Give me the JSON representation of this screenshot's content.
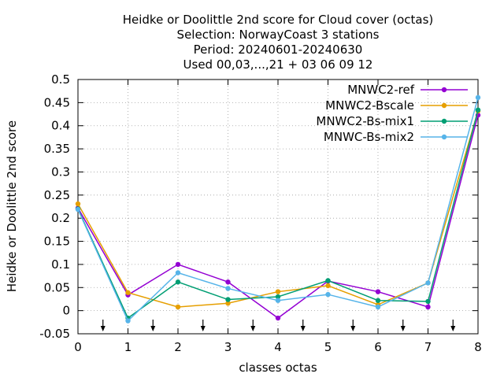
{
  "chart_data": {
    "type": "line",
    "title_lines": [
      "Heidke or Doolittle 2nd score  for Cloud cover (octas)",
      "Selection: NorwayCoast      3 stations",
      "Period: 20240601-20240630",
      "Used 00,03,...,21 + 03 06 09 12"
    ],
    "xlabel": "classes octas",
    "ylabel": "Heidke or Doolittle 2nd score",
    "xlim": [
      0,
      8
    ],
    "ylim": [
      -0.05,
      0.5
    ],
    "xticks": [
      "0",
      "1",
      "2",
      "3",
      "4",
      "5",
      "6",
      "7",
      "8"
    ],
    "yticks": [
      "-0.05",
      "0",
      "0.05",
      "0.1",
      "0.15",
      "0.2",
      "0.25",
      "0.3",
      "0.35",
      "0.4",
      "0.45",
      "0.5"
    ],
    "grid": true,
    "legend_position": "top-right",
    "x": [
      0,
      1,
      2,
      3,
      4,
      5,
      6,
      7,
      8
    ],
    "series": [
      {
        "name": "MNWC2-ref",
        "color": "#9400d3",
        "values": [
          0.222,
          0.034,
          0.1,
          0.062,
          -0.016,
          0.064,
          0.041,
          0.008,
          0.423
        ]
      },
      {
        "name": "MNWC2-Bscale",
        "color": "#e69f00",
        "values": [
          0.231,
          0.039,
          0.008,
          0.016,
          0.041,
          0.054,
          0.013,
          0.06,
          0.432
        ]
      },
      {
        "name": "MNWC2-Bs-mix1",
        "color": "#009e73",
        "values": [
          0.22,
          -0.016,
          0.062,
          0.024,
          0.03,
          0.065,
          0.022,
          0.02,
          0.434
        ]
      },
      {
        "name": "MNWC-Bs-mix2",
        "color": "#56b4e9",
        "values": [
          0.219,
          -0.022,
          0.082,
          0.048,
          0.022,
          0.035,
          0.008,
          0.06,
          0.461
        ]
      }
    ],
    "arrow_markers_x": [
      0.5,
      1.5,
      2.5,
      3.5,
      4.5,
      5.5,
      6.5,
      7.5
    ]
  }
}
